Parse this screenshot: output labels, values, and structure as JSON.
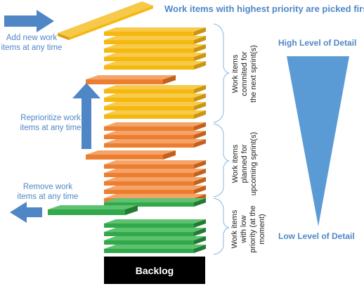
{
  "title": "Work items with highest priority are picked first",
  "left_annotations": {
    "add": "Add new work\nitems at any time",
    "reprioritize": "Reprioritize work\nitems at any time",
    "remove": "Remove work\nitems at any time"
  },
  "brace_labels": {
    "committed": "Work items\ncommited for\nthe next sprint(s)",
    "planned": "Work items\nplanned for\nupcoming sprint(s)",
    "low": "Work items\nwith low\npriority (at the\nmoment)"
  },
  "detail_labels": {
    "high": "High Level of Detail",
    "low": "Low Level of Detail"
  },
  "backlog_label": "Backlog",
  "colors": {
    "accent_blue": "#4f87c6",
    "yellow": "#f5b80f",
    "orange": "#ec7e32",
    "green": "#33a84a",
    "backlog": "#000000"
  },
  "stack": {
    "yellow_count": 9,
    "orange_count": 8,
    "green_count": 5
  }
}
